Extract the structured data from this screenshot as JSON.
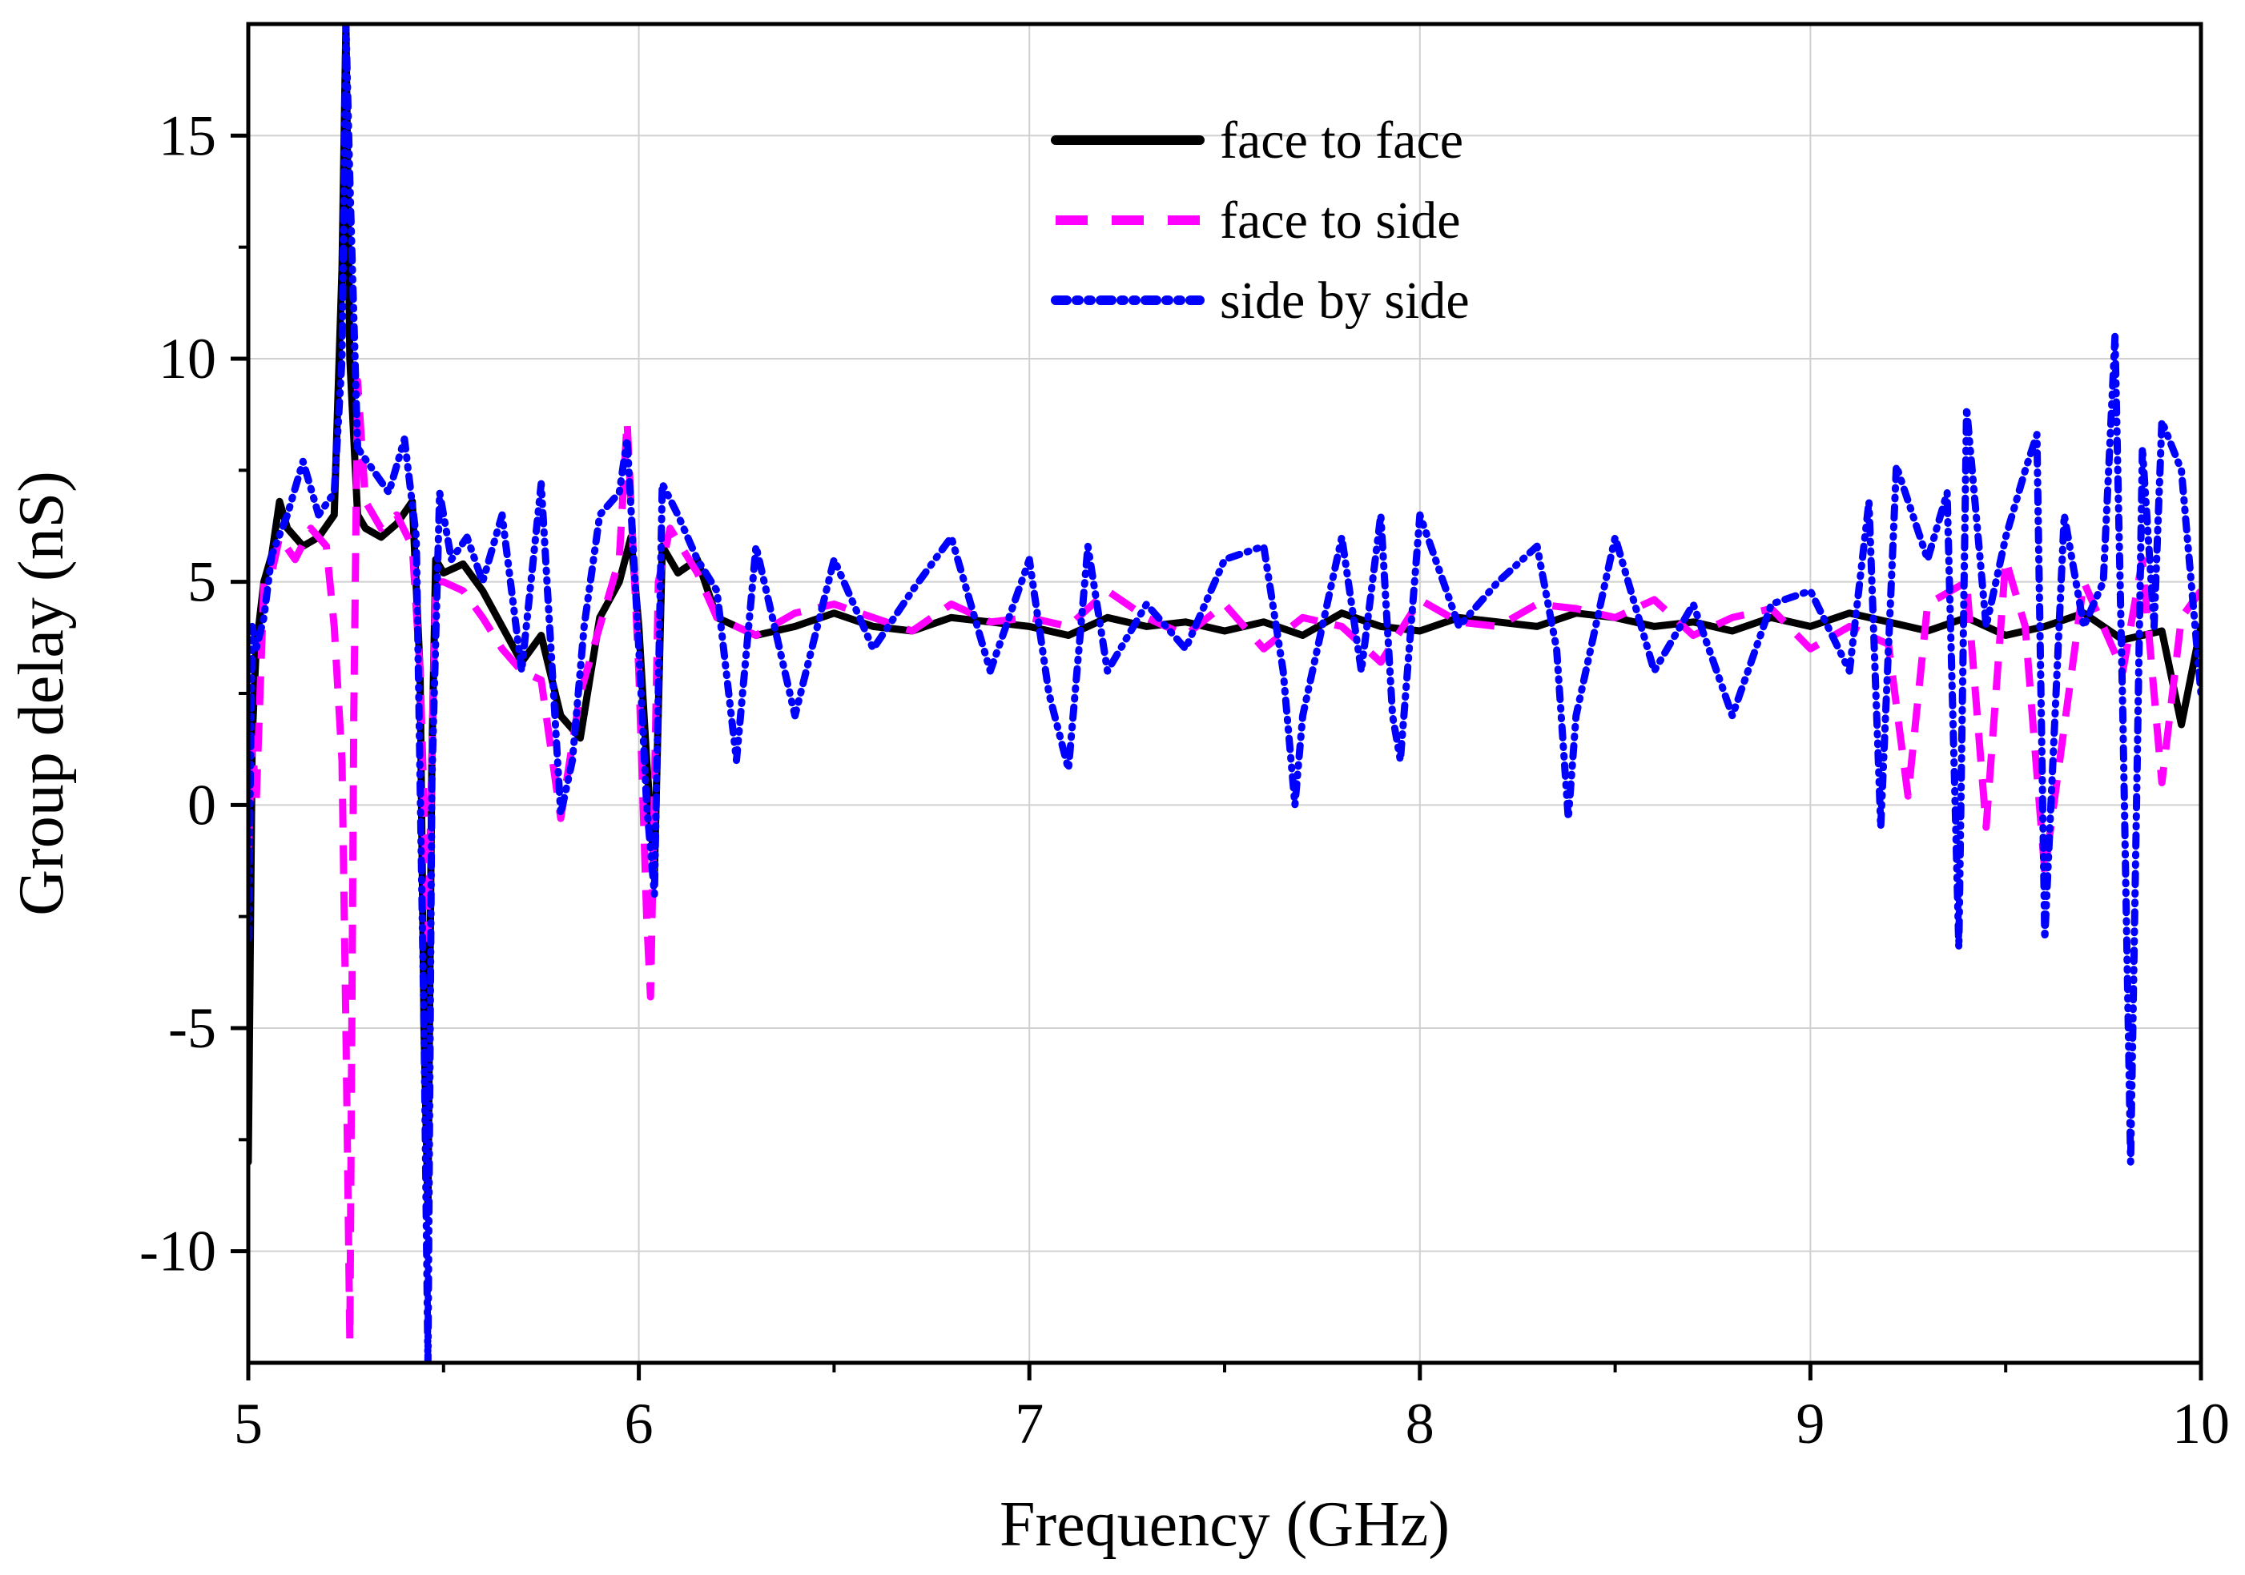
{
  "chart_data": {
    "type": "line",
    "title": "",
    "xlabel": "Frequency (GHz)",
    "ylabel": "Group delay (nS)",
    "xlim": [
      5,
      10
    ],
    "ylim": [
      -12.5,
      17.5
    ],
    "xticks": [
      5,
      6,
      7,
      8,
      9,
      10
    ],
    "yticks": [
      -10,
      -5,
      0,
      5,
      10,
      15
    ],
    "xtick_labels": [
      "5",
      "6",
      "7",
      "8",
      "9",
      "10"
    ],
    "ytick_labels": [
      "-10",
      "-5",
      "0",
      "5",
      "10",
      "15"
    ],
    "grid": true,
    "legend_position": "top-center",
    "series": [
      {
        "name": "face to face",
        "color": "#000000",
        "style": "solid",
        "x": [
          5.0,
          5.01,
          5.02,
          5.04,
          5.06,
          5.08,
          5.1,
          5.14,
          5.18,
          5.22,
          5.24,
          5.25,
          5.26,
          5.28,
          5.3,
          5.34,
          5.38,
          5.42,
          5.44,
          5.45,
          5.46,
          5.47,
          5.48,
          5.5,
          5.55,
          5.6,
          5.65,
          5.7,
          5.75,
          5.8,
          5.85,
          5.9,
          5.95,
          5.98,
          6.0,
          6.02,
          6.04,
          6.06,
          6.1,
          6.15,
          6.2,
          6.3,
          6.4,
          6.5,
          6.6,
          6.7,
          6.8,
          6.9,
          7.0,
          7.1,
          7.2,
          7.3,
          7.4,
          7.5,
          7.6,
          7.7,
          7.8,
          7.9,
          8.0,
          8.1,
          8.2,
          8.3,
          8.4,
          8.5,
          8.6,
          8.7,
          8.8,
          8.9,
          9.0,
          9.1,
          9.2,
          9.3,
          9.4,
          9.5,
          9.6,
          9.7,
          9.8,
          9.9,
          9.95,
          10.0
        ],
        "y": [
          -8.0,
          1.5,
          3.5,
          5.0,
          5.6,
          6.8,
          6.2,
          5.8,
          6.0,
          6.5,
          12.0,
          17.5,
          10.0,
          6.5,
          6.2,
          6.0,
          6.3,
          6.8,
          3.0,
          -5.0,
          -9.0,
          1.0,
          5.5,
          5.2,
          5.4,
          4.8,
          4.0,
          3.2,
          3.8,
          2.0,
          1.5,
          4.2,
          5.0,
          6.0,
          4.0,
          1.0,
          -1.5,
          5.8,
          5.2,
          5.5,
          4.2,
          3.8,
          4.0,
          4.3,
          4.0,
          3.9,
          4.2,
          4.1,
          4.0,
          3.8,
          4.2,
          4.0,
          4.1,
          3.9,
          4.1,
          3.8,
          4.3,
          4.0,
          3.9,
          4.2,
          4.1,
          4.0,
          4.3,
          4.2,
          4.0,
          4.1,
          3.9,
          4.2,
          4.0,
          4.3,
          4.1,
          3.9,
          4.2,
          3.8,
          4.0,
          4.3,
          3.7,
          3.9,
          1.8,
          4.0
        ]
      },
      {
        "name": "face to side",
        "color": "#ff00ff",
        "style": "dashed",
        "x": [
          5.0,
          5.01,
          5.02,
          5.04,
          5.06,
          5.08,
          5.12,
          5.16,
          5.2,
          5.22,
          5.24,
          5.25,
          5.26,
          5.27,
          5.28,
          5.3,
          5.34,
          5.38,
          5.42,
          5.44,
          5.46,
          5.47,
          5.48,
          5.5,
          5.55,
          5.6,
          5.65,
          5.7,
          5.75,
          5.8,
          5.85,
          5.9,
          5.95,
          5.97,
          6.0,
          6.02,
          6.03,
          6.05,
          6.08,
          6.15,
          6.2,
          6.3,
          6.4,
          6.5,
          6.6,
          6.7,
          6.8,
          6.9,
          7.0,
          7.1,
          7.2,
          7.3,
          7.4,
          7.5,
          7.6,
          7.7,
          7.8,
          7.9,
          8.0,
          8.1,
          8.2,
          8.3,
          8.4,
          8.5,
          8.6,
          8.7,
          8.8,
          8.9,
          9.0,
          9.1,
          9.2,
          9.25,
          9.3,
          9.4,
          9.45,
          9.5,
          9.55,
          9.6,
          9.7,
          9.8,
          9.85,
          9.9,
          9.95,
          10.0
        ],
        "y": [
          -1.0,
          1.5,
          0.0,
          5.0,
          5.2,
          6.0,
          5.5,
          6.2,
          5.8,
          4.0,
          1.0,
          -5.0,
          -12.0,
          2.0,
          9.5,
          6.8,
          6.2,
          6.5,
          5.8,
          3.0,
          -3.0,
          1.0,
          5.0,
          5.0,
          4.8,
          4.2,
          3.5,
          3.0,
          2.8,
          -0.3,
          2.5,
          4.0,
          5.5,
          8.6,
          3.0,
          -2.5,
          -4.3,
          5.0,
          6.2,
          5.2,
          4.2,
          3.8,
          4.3,
          4.5,
          4.2,
          3.9,
          4.5,
          4.1,
          4.2,
          4.0,
          4.8,
          4.2,
          3.8,
          4.5,
          3.5,
          4.2,
          4.0,
          3.2,
          4.6,
          4.1,
          4.0,
          4.5,
          4.4,
          4.2,
          4.6,
          3.8,
          4.2,
          4.4,
          3.5,
          4.0,
          3.6,
          0.2,
          4.5,
          5.0,
          -0.5,
          5.5,
          4.0,
          -1.5,
          5.0,
          3.0,
          5.5,
          0.5,
          4.2,
          4.8
        ]
      },
      {
        "name": "side by side",
        "color": "#0000ff",
        "style": "dash-dot-dot",
        "x": [
          5.0,
          5.01,
          5.02,
          5.04,
          5.06,
          5.1,
          5.14,
          5.18,
          5.22,
          5.24,
          5.25,
          5.26,
          5.28,
          5.32,
          5.36,
          5.4,
          5.43,
          5.45,
          5.46,
          5.47,
          5.49,
          5.52,
          5.56,
          5.6,
          5.65,
          5.7,
          5.75,
          5.8,
          5.83,
          5.86,
          5.9,
          5.95,
          5.97,
          6.0,
          6.02,
          6.04,
          6.06,
          6.1,
          6.15,
          6.2,
          6.25,
          6.3,
          6.4,
          6.5,
          6.6,
          6.7,
          6.8,
          6.9,
          7.0,
          7.05,
          7.1,
          7.15,
          7.2,
          7.3,
          7.4,
          7.5,
          7.6,
          7.65,
          7.68,
          7.7,
          7.8,
          7.85,
          7.9,
          7.93,
          7.95,
          8.0,
          8.1,
          8.2,
          8.3,
          8.35,
          8.38,
          8.4,
          8.5,
          8.6,
          8.7,
          8.8,
          8.9,
          9.0,
          9.1,
          9.15,
          9.18,
          9.22,
          9.3,
          9.35,
          9.38,
          9.4,
          9.45,
          9.5,
          9.55,
          9.58,
          9.6,
          9.65,
          9.7,
          9.75,
          9.78,
          9.8,
          9.82,
          9.85,
          9.88,
          9.9,
          9.95,
          10.0
        ],
        "y": [
          -3.0,
          4.0,
          3.5,
          4.2,
          5.6,
          6.5,
          7.7,
          6.5,
          7.0,
          10.0,
          17.5,
          14.0,
          8.0,
          7.5,
          7.0,
          8.2,
          6.0,
          -5.0,
          -12.5,
          0.5,
          7.0,
          5.5,
          6.0,
          5.0,
          6.5,
          3.0,
          7.2,
          -0.2,
          1.0,
          4.0,
          6.5,
          7.0,
          8.2,
          3.5,
          0.0,
          -2.0,
          7.2,
          6.5,
          5.5,
          4.8,
          1.0,
          5.8,
          2.0,
          5.5,
          3.5,
          4.8,
          6.0,
          3.0,
          5.5,
          2.5,
          0.8,
          5.8,
          3.0,
          4.5,
          3.5,
          5.5,
          5.8,
          3.0,
          0.0,
          2.0,
          6.0,
          3.0,
          6.5,
          2.0,
          1.0,
          6.5,
          4.0,
          5.0,
          5.8,
          3.5,
          -0.3,
          2.0,
          6.0,
          3.0,
          4.5,
          2.0,
          4.5,
          4.8,
          3.0,
          6.8,
          -0.5,
          7.6,
          5.5,
          7.0,
          -3.2,
          8.9,
          4.0,
          6.0,
          7.5,
          8.3,
          -3.0,
          6.5,
          4.0,
          5.0,
          10.5,
          2.0,
          -8.0,
          8.0,
          4.0,
          8.6,
          7.5,
          2.5
        ]
      }
    ]
  }
}
